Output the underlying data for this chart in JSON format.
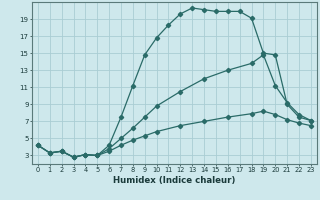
{
  "xlabel": "Humidex (Indice chaleur)",
  "bg_color": "#cee8ec",
  "grid_color": "#aacdd4",
  "line_color": "#2a6b68",
  "xlim": [
    -0.5,
    23.5
  ],
  "ylim": [
    2.0,
    21.0
  ],
  "xticks": [
    0,
    1,
    2,
    3,
    4,
    5,
    6,
    7,
    8,
    9,
    10,
    11,
    12,
    13,
    14,
    15,
    16,
    17,
    18,
    19,
    20,
    21,
    22,
    23
  ],
  "yticks": [
    3,
    5,
    7,
    9,
    11,
    13,
    15,
    17,
    19
  ],
  "curve1_x": [
    0,
    1,
    2,
    3,
    4,
    5,
    6,
    7,
    8,
    9,
    10,
    11,
    12,
    13,
    14,
    15,
    16,
    17,
    18,
    19,
    20,
    21,
    22,
    23
  ],
  "curve1_y": [
    4.2,
    3.3,
    3.5,
    2.8,
    3.1,
    3.0,
    4.2,
    7.5,
    11.2,
    14.8,
    16.8,
    18.3,
    19.6,
    20.3,
    20.1,
    19.9,
    19.9,
    19.9,
    19.1,
    15.0,
    14.8,
    9.0,
    7.5,
    7.1
  ],
  "curve2_x": [
    0,
    1,
    2,
    3,
    4,
    5,
    6,
    7,
    8,
    9,
    10,
    12,
    14,
    16,
    18,
    19,
    20,
    21,
    22,
    23
  ],
  "curve2_y": [
    4.2,
    3.3,
    3.5,
    2.8,
    3.1,
    3.0,
    3.8,
    5.0,
    6.2,
    7.5,
    8.8,
    10.5,
    12.0,
    13.0,
    13.8,
    14.8,
    11.2,
    9.2,
    7.8,
    7.1
  ],
  "curve3_x": [
    0,
    1,
    2,
    3,
    4,
    5,
    6,
    7,
    8,
    9,
    10,
    12,
    14,
    16,
    18,
    19,
    20,
    21,
    22,
    23
  ],
  "curve3_y": [
    4.2,
    3.3,
    3.5,
    2.8,
    3.1,
    3.0,
    3.5,
    4.2,
    4.8,
    5.3,
    5.8,
    6.5,
    7.0,
    7.5,
    7.9,
    8.2,
    7.8,
    7.2,
    6.8,
    6.5
  ]
}
